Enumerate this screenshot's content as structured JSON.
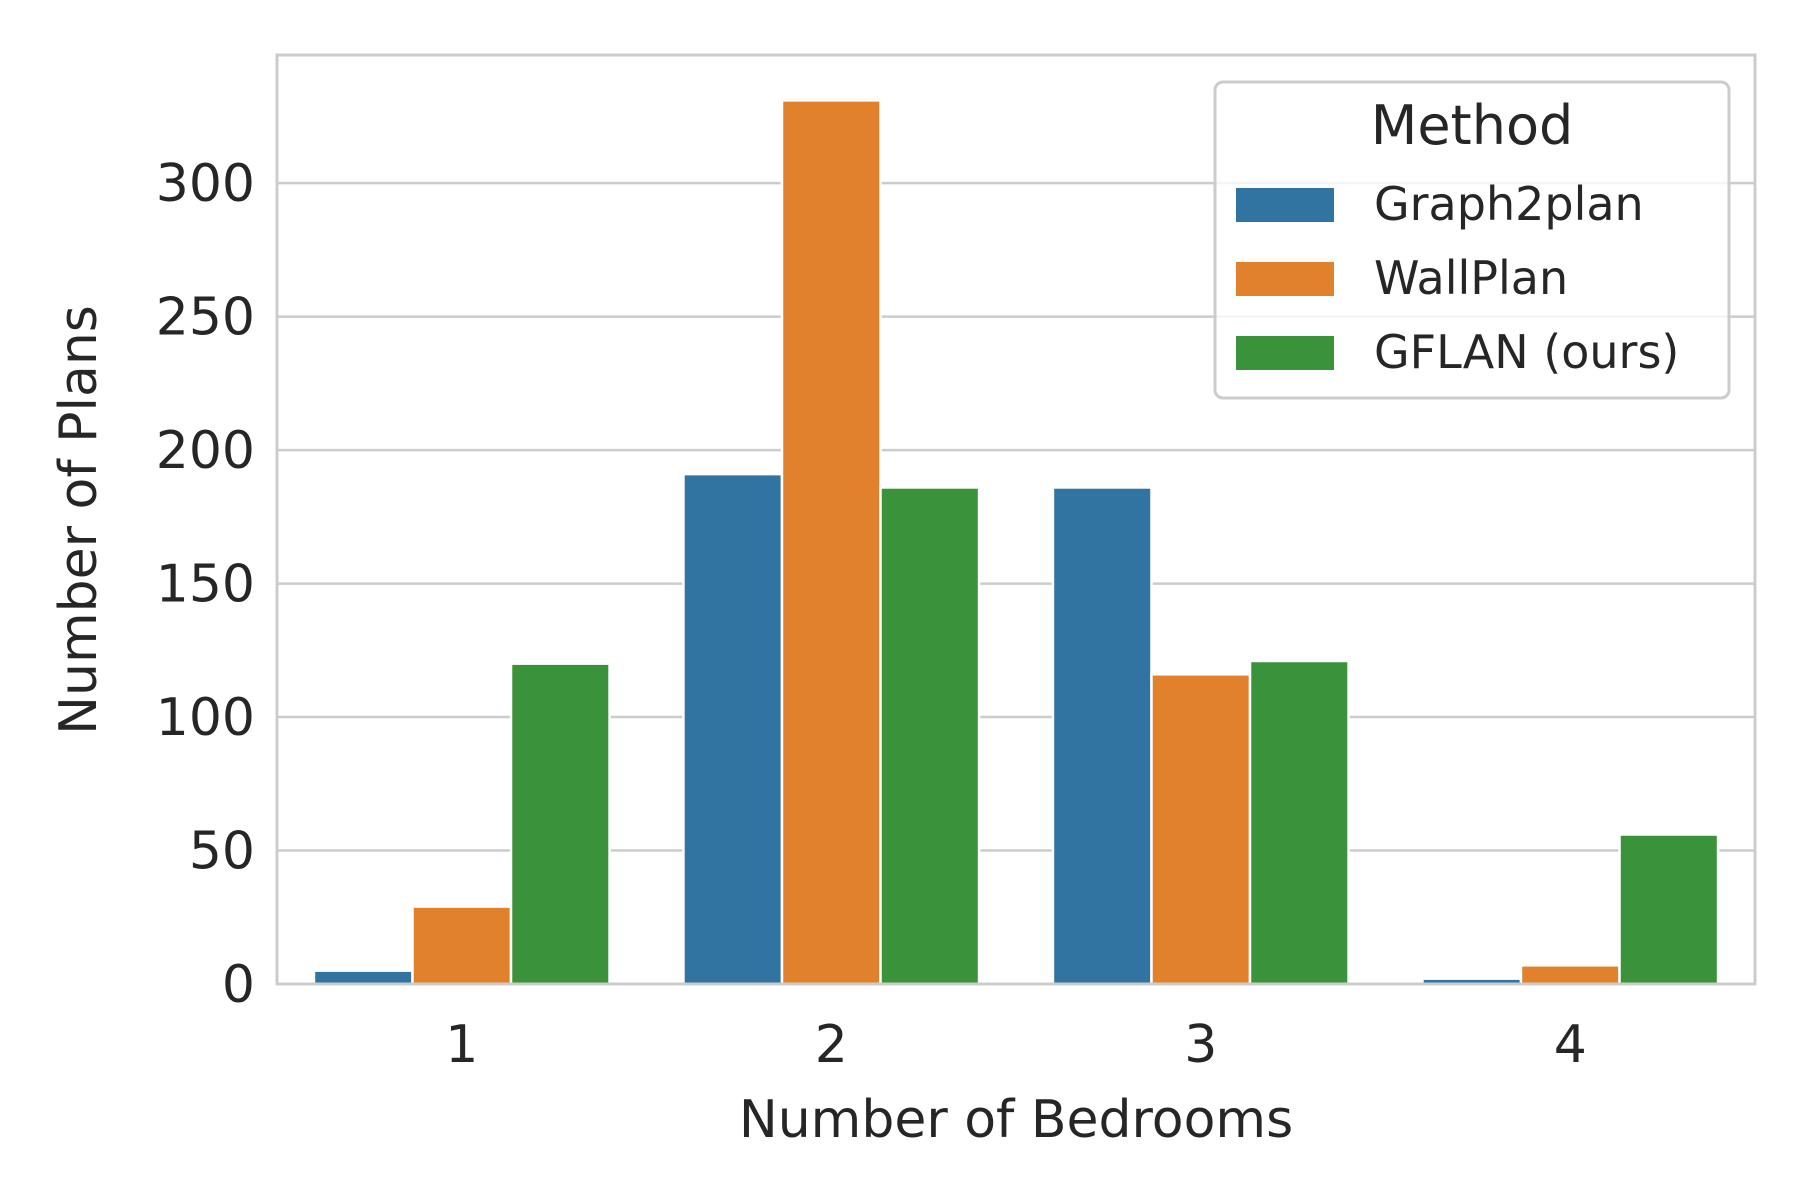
{
  "chart_data": {
    "type": "bar",
    "categories": [
      "1",
      "2",
      "3",
      "4"
    ],
    "series": [
      {
        "name": "Graph2plan",
        "color": "#3274a1",
        "values": [
          5,
          191,
          186,
          2
        ]
      },
      {
        "name": "WallPlan",
        "color": "#e1812c",
        "values": [
          29,
          331,
          116,
          7
        ]
      },
      {
        "name": "GFLAN (ours)",
        "color": "#3a923a",
        "values": [
          120,
          186,
          121,
          56
        ]
      }
    ],
    "xlabel": "Number of Bedrooms",
    "ylabel": "Number of Plans",
    "ylim": [
      0,
      348
    ],
    "yticks": [
      0,
      50,
      100,
      150,
      200,
      250,
      300
    ],
    "grid": true,
    "legend": {
      "title": "Method",
      "placement": "top-right"
    }
  }
}
